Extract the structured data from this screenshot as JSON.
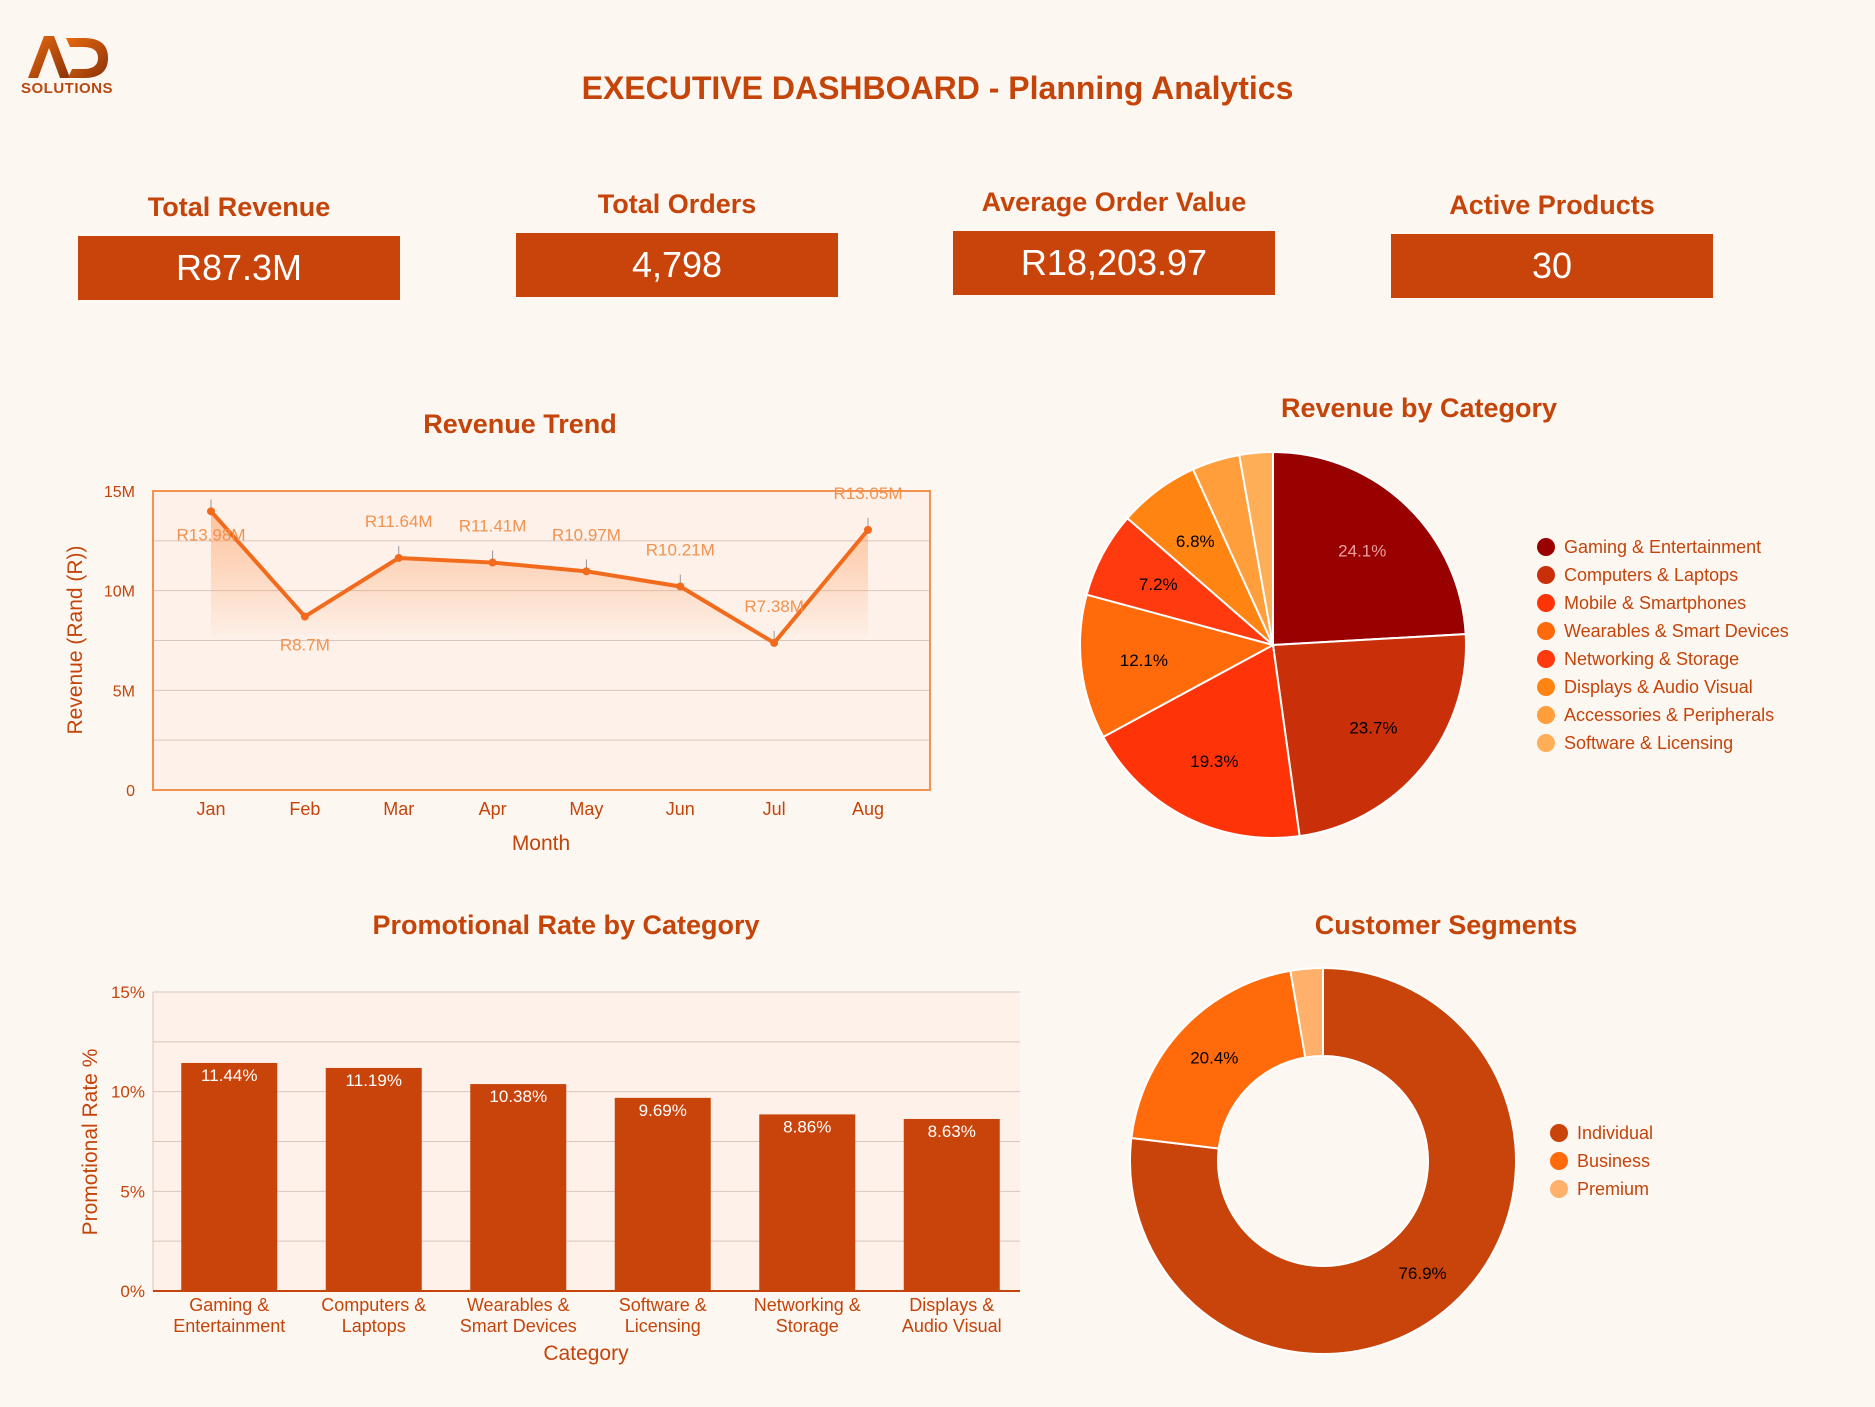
{
  "logo": {
    "text": "SOLUTIONS"
  },
  "title": "EXECUTIVE DASHBOARD - Planning Analytics",
  "kpis": [
    {
      "label": "Total Revenue",
      "value": "R87.3M"
    },
    {
      "label": "Total Orders",
      "value": "4,798"
    },
    {
      "label": "Average Order Value",
      "value": "R18,203.97"
    },
    {
      "label": "Active Products",
      "value": "30"
    }
  ],
  "colors": {
    "accent": "#c9440a",
    "line": "#f26b1d",
    "background": "#fdf7f2"
  },
  "chart_data": [
    {
      "type": "line",
      "title": "Revenue Trend",
      "xlabel": "Month",
      "ylabel": "Revenue (Rand (R))",
      "categories": [
        "Jan",
        "Feb",
        "Mar",
        "Apr",
        "May",
        "Jun",
        "Jul",
        "Aug"
      ],
      "values": [
        13.98,
        8.7,
        11.64,
        11.41,
        10.97,
        10.21,
        7.38,
        13.05
      ],
      "data_labels": [
        "R13.98M",
        "R8.7M",
        "R11.64M",
        "R11.41M",
        "R10.97M",
        "R10.21M",
        "R7.38M",
        "R13.05M"
      ],
      "yticks": [
        "0",
        "5M",
        "10M",
        "15M"
      ],
      "ylim": [
        0,
        15
      ],
      "grid": true
    },
    {
      "type": "pie",
      "title": "Revenue by Category",
      "legend_position": "right",
      "categories": [
        "Gaming & Entertainment",
        "Computers & Laptops",
        "Mobile & Smartphones",
        "Wearables & Smart Devices",
        "Networking & Storage",
        "Displays & Audio Visual",
        "Accessories & Peripherals",
        "Software & Licensing"
      ],
      "values": [
        24.1,
        23.7,
        19.3,
        12.1,
        7.2,
        6.8,
        4.0,
        2.8
      ],
      "data_labels": [
        "24.1%",
        "23.7%",
        "19.3%",
        "12.1%",
        "7.2%",
        "6.8%",
        "",
        ""
      ],
      "colors": [
        "#990000",
        "#c9300a",
        "#ff3308",
        "#ff6a0a",
        "#ff3a0f",
        "#ff8412",
        "#ff9e3b",
        "#ffae58"
      ]
    },
    {
      "type": "bar",
      "title": "Promotional Rate by Category",
      "xlabel": "Category",
      "ylabel": "Promotional Rate %",
      "categories": [
        [
          "Gaming &",
          "Entertainment"
        ],
        [
          "Computers &",
          "Laptops"
        ],
        [
          "Wearables &",
          "Smart Devices"
        ],
        [
          "Software &",
          "Licensing"
        ],
        [
          "Networking &",
          "Storage"
        ],
        [
          "Displays &",
          "Audio Visual"
        ]
      ],
      "values": [
        11.44,
        11.19,
        10.38,
        9.69,
        8.86,
        8.63
      ],
      "data_labels": [
        "11.44%",
        "11.19%",
        "10.38%",
        "9.69%",
        "8.86%",
        "8.63%"
      ],
      "yticks": [
        "0%",
        "5%",
        "10%",
        "15%"
      ],
      "ylim": [
        0,
        15
      ],
      "grid": true
    },
    {
      "type": "pie",
      "title": "Customer Segments",
      "legend_position": "right",
      "categories": [
        "Individual",
        "Business",
        "Premium"
      ],
      "values": [
        76.9,
        20.4,
        2.7
      ],
      "data_labels": [
        "76.9%",
        "20.4%",
        ""
      ],
      "colors": [
        "#c9440a",
        "#ff6a0a",
        "#ffb06a"
      ]
    }
  ]
}
